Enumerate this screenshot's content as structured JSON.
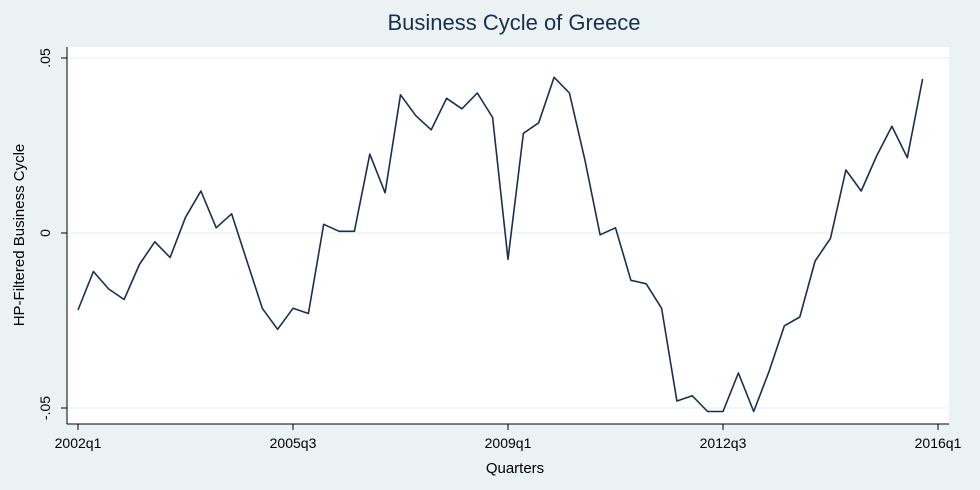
{
  "chart_data": {
    "type": "line",
    "title": "Business Cycle of Greece",
    "xlabel": "Quarters",
    "ylabel": "HP-Filtered Business Cycle",
    "xlim": [
      "2002q1",
      "2016q1"
    ],
    "ylim": [
      -0.05,
      0.05
    ],
    "grid": true,
    "x_ticks": [
      {
        "label": "2002q1",
        "index": 0
      },
      {
        "label": "2005q3",
        "index": 14
      },
      {
        "label": "2009q1",
        "index": 28
      },
      {
        "label": "2012q3",
        "index": 42
      },
      {
        "label": "2016q1",
        "index": 56
      }
    ],
    "y_ticks": [
      {
        "label": "-.05",
        "value": -0.05
      },
      {
        "label": "0",
        "value": 0
      },
      {
        "label": ".05",
        "value": 0.05
      }
    ],
    "series": [
      {
        "color": "#1a2f4f",
        "x": [
          "2002q1",
          "2002q2",
          "2002q3",
          "2002q4",
          "2003q1",
          "2003q2",
          "2003q3",
          "2003q4",
          "2004q1",
          "2004q2",
          "2004q3",
          "2004q4",
          "2005q1",
          "2005q2",
          "2005q3",
          "2005q4",
          "2006q1",
          "2006q2",
          "2006q3",
          "2006q4",
          "2007q1",
          "2007q2",
          "2007q3",
          "2007q4",
          "2008q1",
          "2008q2",
          "2008q3",
          "2008q4",
          "2009q1",
          "2009q2",
          "2009q3",
          "2009q4",
          "2010q1",
          "2010q2",
          "2010q3",
          "2010q4",
          "2011q1",
          "2011q2",
          "2011q3",
          "2011q4",
          "2012q1",
          "2012q2",
          "2012q3",
          "2012q4",
          "2013q1",
          "2013q2",
          "2013q3",
          "2013q4",
          "2014q1",
          "2014q2",
          "2014q3",
          "2014q4",
          "2015q1",
          "2015q2",
          "2015q3",
          "2015q4"
        ],
        "values": [
          -0.022,
          -0.011,
          -0.016,
          -0.019,
          -0.009,
          -0.0025,
          -0.007,
          0.0045,
          0.012,
          0.0015,
          0.0055,
          -0.008,
          -0.0215,
          -0.0275,
          -0.0215,
          -0.023,
          0.0025,
          0.0005,
          0.0005,
          0.0225,
          0.0115,
          0.0395,
          0.0335,
          0.0295,
          0.0385,
          0.0355,
          0.04,
          0.033,
          -0.0075,
          0.0285,
          0.0315,
          0.0445,
          0.04,
          0.021,
          -0.0005,
          0.0015,
          -0.0135,
          -0.0145,
          -0.0215,
          -0.048,
          -0.0465,
          -0.051,
          -0.051,
          -0.04,
          -0.051,
          -0.0395,
          -0.0265,
          -0.024,
          -0.008,
          -0.0015,
          0.018,
          0.012,
          0.022,
          0.0305,
          0.0215,
          0.044
        ]
      }
    ]
  }
}
